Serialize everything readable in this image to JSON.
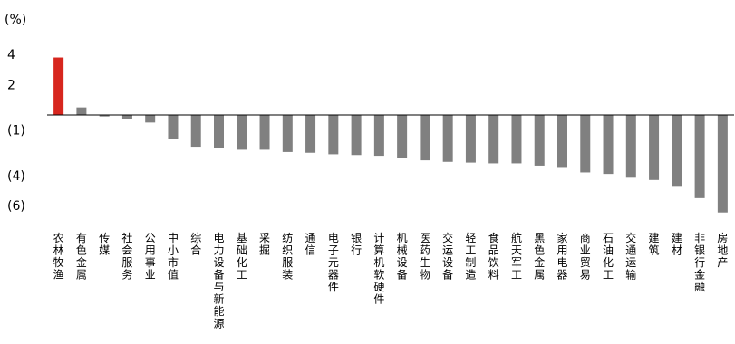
{
  "chart_data": {
    "type": "bar",
    "unit_label": "(%)",
    "ylim": [
      -6,
      4
    ],
    "yticks": [
      4,
      2,
      -1,
      -4,
      -6
    ],
    "ytick_labels": [
      "4",
      "2",
      "(1)",
      "(4)",
      "(6)"
    ],
    "grid": false,
    "legend": "none",
    "colors": {
      "highlight": "#d7261e",
      "default": "#808080",
      "axis": "#000000"
    },
    "categories": [
      "农林牧渔",
      "有色金属",
      "传媒",
      "社会服务",
      "公用事业",
      "中小市值",
      "综合",
      "电力设备与新能源",
      "基础化工",
      "采掘",
      "纺织服装",
      "通信",
      "电子元器件",
      "银行",
      "计算机软硬件",
      "机械设备",
      "医药生物",
      "交运设备",
      "轻工制造",
      "食品饮料",
      "航天军工",
      "黑色金属",
      "家用电器",
      "商业贸易",
      "石油化工",
      "交通运输",
      "建筑",
      "建材",
      "非银行金融",
      "房地产"
    ],
    "values": [
      3.8,
      0.5,
      -0.1,
      -0.25,
      -0.5,
      -1.6,
      -2.1,
      -2.2,
      -2.3,
      -2.3,
      -2.45,
      -2.5,
      -2.6,
      -2.65,
      -2.7,
      -2.85,
      -3.0,
      -3.1,
      -3.15,
      -3.2,
      -3.2,
      -3.35,
      -3.5,
      -3.8,
      -3.9,
      -4.15,
      -4.3,
      -4.75,
      -5.5,
      -6.45
    ],
    "highlight_index": 0
  }
}
